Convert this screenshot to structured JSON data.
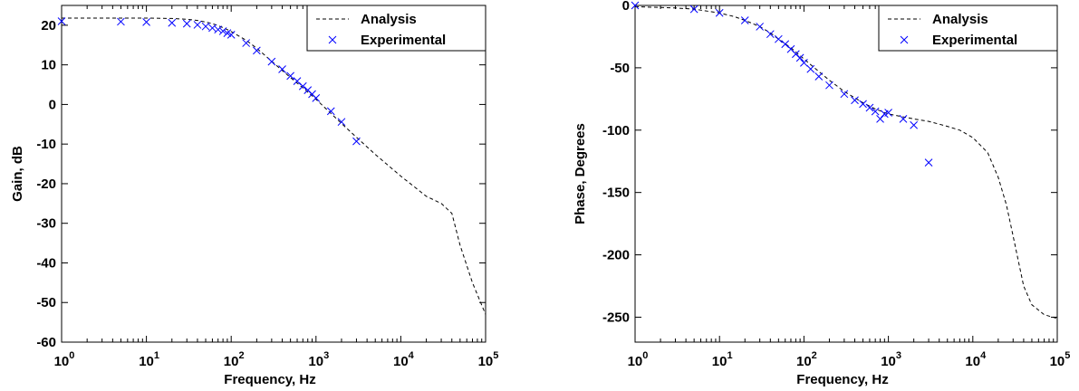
{
  "chart_data": [
    {
      "type": "line",
      "xscale": "log",
      "xlim": [
        1,
        100000
      ],
      "ylim": [
        -60,
        25
      ],
      "xlabel": "Frequency, Hz",
      "ylabel": "Gain, dB",
      "yticks": [
        20,
        10,
        0,
        -10,
        -20,
        -30,
        -40,
        -50,
        -60
      ],
      "xtick_exponents": [
        "0",
        "1",
        "2",
        "3",
        "4",
        "5"
      ],
      "xtick_base": "10",
      "legend_position": "top-right",
      "grid": false,
      "series": [
        {
          "name": "Analysis",
          "style": "dashed",
          "color": "#000000",
          "x": [
            1,
            5,
            10,
            20,
            30,
            40,
            50,
            60,
            70,
            80,
            90,
            100,
            150,
            200,
            300,
            500,
            700,
            1000,
            2000,
            3000,
            5000,
            10000,
            20000,
            30000,
            40000,
            50000,
            70000,
            100000
          ],
          "y": [
            21.8,
            21.8,
            21.8,
            21.7,
            21.5,
            21.2,
            20.8,
            20.4,
            19.9,
            19.4,
            18.9,
            18.4,
            16.2,
            14.2,
            10.9,
            6.8,
            4.2,
            1.3,
            -4.8,
            -8.3,
            -12.6,
            -18.1,
            -23.2,
            -25.0,
            -27.5,
            -35.5,
            -45.0,
            -53.0
          ]
        },
        {
          "name": "Experimental",
          "style": "marker-x",
          "color": "#0000ff",
          "x": [
            1,
            5,
            10,
            20,
            30,
            40,
            50,
            60,
            70,
            80,
            90,
            100,
            150,
            200,
            300,
            400,
            500,
            600,
            700,
            800,
            900,
            1000,
            1500,
            2000,
            3000
          ],
          "y": [
            21.0,
            20.9,
            20.8,
            20.6,
            20.4,
            20.1,
            19.7,
            19.3,
            18.9,
            18.5,
            18.0,
            17.6,
            15.5,
            13.6,
            10.8,
            8.9,
            7.2,
            5.9,
            4.6,
            3.6,
            2.6,
            1.6,
            -1.7,
            -4.4,
            -9.3
          ]
        }
      ]
    },
    {
      "type": "line",
      "xscale": "log",
      "xlim": [
        1,
        100000
      ],
      "ylim": [
        -270,
        0
      ],
      "xlabel": "Frequency, Hz",
      "ylabel": "Phase, Degrees",
      "yticks": [
        0,
        -50,
        -100,
        -150,
        -200,
        -250
      ],
      "xtick_exponents": [
        "0",
        "1",
        "2",
        "3",
        "4",
        "5"
      ],
      "xtick_base": "10",
      "legend_position": "top-right",
      "grid": false,
      "series": [
        {
          "name": "Analysis",
          "style": "dashed",
          "color": "#000000",
          "x": [
            1,
            3,
            5,
            10,
            15,
            20,
            30,
            40,
            50,
            70,
            100,
            150,
            200,
            300,
            500,
            700,
            1000,
            2000,
            3000,
            5000,
            7000,
            10000,
            15000,
            20000,
            25000,
            30000,
            40000,
            50000,
            70000,
            100000
          ],
          "y": [
            -1,
            -2,
            -3,
            -6,
            -9,
            -12,
            -17,
            -22,
            -27,
            -34,
            -43,
            -53,
            -60,
            -69,
            -78,
            -83,
            -87,
            -91,
            -93,
            -97,
            -100,
            -106,
            -118,
            -138,
            -160,
            -185,
            -225,
            -240,
            -248,
            -251
          ]
        },
        {
          "name": "Experimental",
          "style": "marker-x",
          "color": "#0000ff",
          "x": [
            1,
            5,
            10,
            20,
            30,
            40,
            50,
            60,
            70,
            80,
            90,
            100,
            120,
            150,
            200,
            300,
            400,
            500,
            600,
            700,
            800,
            900,
            1000,
            1500,
            2000,
            3000
          ],
          "y": [
            0,
            -3,
            -6,
            -12,
            -17,
            -23,
            -27,
            -31,
            -35,
            -39,
            -42,
            -46,
            -51,
            -57,
            -64,
            -71,
            -76,
            -79,
            -82,
            -85,
            -91,
            -87,
            -86,
            -91,
            -96,
            -126
          ]
        }
      ]
    }
  ]
}
